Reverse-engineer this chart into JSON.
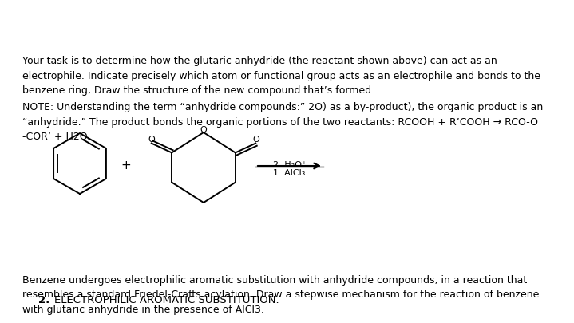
{
  "background_color": "#ffffff",
  "title_number": "2.",
  "title_text": "ELECTROPHILIC AROMATIC SUBSTITUTION.",
  "title_fontsize": 9.5,
  "paragraph1": "Benzene undergoes electrophilic aromatic substitution with anhydride compounds, in a reaction that\nresembles a standard Friedel-Crafts acylation. Draw a stepwise mechanism for the reaction of benzene\nwith glutaric anhydride in the presence of AlCl3.",
  "para1_fontsize": 9.0,
  "reaction_label1": "1. AlCl₃",
  "reaction_label2": "2. H₃O⁺",
  "note_text": "NOTE: Understanding the term “anhydride compounds:” 2O) as a by-product), the organic product is an\n“anhydride.” The product bonds the organic portions of the two reactants: RCOOH + R’COOH → RCO-O\n-COR’ + H2O.",
  "note_fontsize": 9.0,
  "task_text": "Your task is to determine how the glutaric anhydride (the reactant shown above) can act as an\nelectrophile. Indicate precisely which atom or functional group acts as an electrophile and bonds to the\nbenzene ring, Draw the structure of the new compound that’s formed.",
  "task_fontsize": 9.0,
  "line_color": "#000000"
}
